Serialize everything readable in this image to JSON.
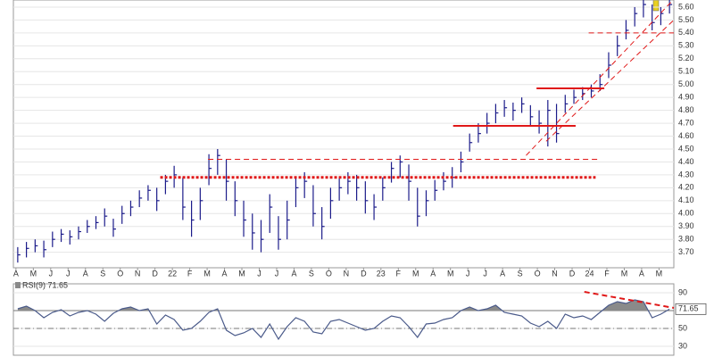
{
  "chart_data": [
    {
      "type": "ohlc",
      "categories": [
        "A",
        null,
        "M",
        null,
        "J",
        null,
        "J",
        null,
        "A",
        null,
        "S",
        null,
        "O",
        null,
        "N",
        null,
        "D",
        null,
        "22",
        null,
        "F",
        null,
        "M",
        null,
        "A",
        null,
        "M",
        null,
        "J",
        null,
        "J",
        null,
        "A",
        null,
        "S",
        null,
        "O",
        null,
        "N",
        null,
        "D",
        null,
        "23",
        null,
        "F",
        null,
        "M",
        null,
        "A",
        null,
        "M",
        null,
        "J",
        null,
        "J",
        null,
        "A",
        null,
        "S",
        null,
        "O",
        null,
        "N",
        null,
        "D",
        null,
        "24",
        null,
        "F",
        null,
        "M",
        null,
        "A",
        null,
        "M",
        null
      ],
      "high": [
        3.74,
        3.78,
        3.8,
        3.79,
        3.86,
        3.88,
        3.87,
        3.9,
        3.95,
        3.98,
        4.04,
        3.96,
        4.06,
        4.1,
        4.18,
        4.22,
        4.2,
        4.3,
        4.37,
        4.28,
        4.1,
        4.2,
        4.46,
        4.5,
        4.42,
        4.25,
        4.1,
        4.0,
        3.95,
        4.15,
        3.98,
        4.1,
        4.28,
        4.32,
        4.22,
        4.05,
        4.2,
        4.28,
        4.32,
        4.3,
        4.25,
        4.15,
        4.28,
        4.4,
        4.45,
        4.38,
        4.2,
        4.18,
        4.26,
        4.32,
        4.36,
        4.48,
        4.62,
        4.7,
        4.78,
        4.85,
        4.88,
        4.86,
        4.9,
        4.84,
        4.8,
        4.88,
        4.85,
        4.92,
        4.96,
        4.98,
        5.0,
        5.08,
        5.25,
        5.38,
        5.5,
        5.6,
        5.66,
        5.62,
        5.6,
        5.66
      ],
      "low": [
        3.62,
        3.66,
        3.7,
        3.66,
        3.74,
        3.78,
        3.76,
        3.8,
        3.85,
        3.88,
        3.9,
        3.82,
        3.92,
        3.98,
        4.05,
        4.1,
        4.02,
        4.15,
        4.2,
        3.95,
        3.82,
        3.95,
        4.22,
        4.3,
        4.1,
        3.98,
        3.82,
        3.72,
        3.7,
        3.85,
        3.72,
        3.8,
        4.05,
        4.12,
        3.9,
        3.8,
        3.96,
        4.1,
        4.15,
        4.1,
        4.0,
        3.95,
        4.1,
        4.24,
        4.28,
        4.1,
        3.9,
        3.98,
        4.1,
        4.18,
        4.2,
        4.32,
        4.48,
        4.55,
        4.62,
        4.7,
        4.75,
        4.72,
        4.78,
        4.68,
        4.62,
        4.52,
        4.55,
        4.78,
        4.85,
        4.88,
        4.9,
        4.95,
        5.05,
        5.22,
        5.35,
        5.45,
        5.52,
        5.42,
        5.46,
        5.55
      ],
      "close": [
        3.68,
        3.73,
        3.75,
        3.72,
        3.8,
        3.84,
        3.82,
        3.86,
        3.9,
        3.93,
        3.98,
        3.88,
        4.0,
        4.05,
        4.12,
        4.18,
        4.1,
        4.25,
        4.3,
        4.05,
        3.95,
        4.1,
        4.35,
        4.45,
        4.25,
        4.1,
        3.95,
        3.85,
        3.8,
        4.05,
        3.8,
        3.95,
        4.2,
        4.25,
        4.0,
        3.9,
        4.1,
        4.2,
        4.25,
        4.2,
        4.1,
        4.05,
        4.2,
        4.35,
        4.4,
        4.25,
        3.98,
        4.1,
        4.18,
        4.25,
        4.28,
        4.4,
        4.55,
        4.62,
        4.7,
        4.78,
        4.82,
        4.8,
        4.85,
        4.75,
        4.7,
        4.8,
        4.62,
        4.85,
        4.9,
        4.93,
        4.95,
        5.0,
        5.15,
        5.3,
        5.42,
        5.55,
        5.62,
        5.48,
        5.55,
        5.62
      ],
      "color": "#1c1c8a",
      "ylim": [
        3.58,
        5.655
      ],
      "yticks": [
        {
          "value": 3.7,
          "label": "3.70"
        },
        {
          "value": 3.8,
          "label": "3.80"
        },
        {
          "value": 3.9,
          "label": "3.90"
        },
        {
          "value": 4.0,
          "label": "4.00"
        },
        {
          "value": 4.1,
          "label": "4.10"
        },
        {
          "value": 4.2,
          "label": "4.20"
        },
        {
          "value": 4.3,
          "label": "4.30"
        },
        {
          "value": 4.4,
          "label": "4.40"
        },
        {
          "value": 4.5,
          "label": "4.50"
        },
        {
          "value": 4.6,
          "label": "4.60"
        },
        {
          "value": 4.7,
          "label": "4.70"
        },
        {
          "value": 4.8,
          "label": "4.80"
        },
        {
          "value": 4.9,
          "label": "4.90"
        },
        {
          "value": 5.0,
          "label": "5.00"
        },
        {
          "value": 5.1,
          "label": "5.10"
        },
        {
          "value": 5.2,
          "label": "5.20"
        },
        {
          "value": 5.3,
          "label": "5.30"
        },
        {
          "value": 5.4,
          "label": "5.40"
        },
        {
          "value": 5.5,
          "label": "5.50"
        },
        {
          "value": 5.6,
          "label": "5.60"
        }
      ],
      "grid": true,
      "lines": [
        {
          "color": "#e01818",
          "style": "dotted",
          "width": 3,
          "x": [
            16.4,
            66.5
          ],
          "y": [
            4.28,
            4.28
          ]
        },
        {
          "color": "#e01818",
          "style": "dashed",
          "width": 1,
          "x": [
            21.9,
            67.0
          ],
          "y": [
            4.42,
            4.42
          ]
        },
        {
          "color": "#e01818",
          "style": "solid",
          "width": 2,
          "x": [
            50.1,
            64.2
          ],
          "y": [
            4.68,
            4.68
          ]
        },
        {
          "color": "#e01818",
          "style": "solid",
          "width": 2,
          "x": [
            59.7,
            67.5
          ],
          "y": [
            4.97,
            4.97
          ]
        },
        {
          "color": "#e01818",
          "style": "dashed",
          "width": 1,
          "x": [
            65.7,
            75.5
          ],
          "y": [
            5.4,
            5.4
          ]
        },
        {
          "color": "#e01818",
          "style": "dashed",
          "width": 1,
          "x": [
            58.5,
            75.2
          ],
          "y": [
            4.45,
            5.64
          ]
        },
        {
          "color": "#e01818",
          "style": "dashed",
          "width": 1,
          "x": [
            60.8,
            75.5
          ],
          "y": [
            4.56,
            5.5
          ]
        }
      ]
    },
    {
      "type": "line",
      "title": "RSI(9) 71.65",
      "values": [
        72,
        75,
        70,
        62,
        68,
        71,
        64,
        68,
        70,
        66,
        58,
        67,
        72,
        74,
        70,
        72,
        55,
        65,
        60,
        48,
        50,
        58,
        68,
        72,
        48,
        42,
        45,
        50,
        40,
        55,
        38,
        52,
        62,
        58,
        46,
        44,
        58,
        60,
        56,
        52,
        48,
        50,
        58,
        64,
        62,
        52,
        40,
        55,
        56,
        60,
        62,
        70,
        74,
        70,
        72,
        76,
        68,
        66,
        64,
        56,
        52,
        58,
        50,
        66,
        62,
        64,
        60,
        68,
        76,
        80,
        78,
        82,
        80,
        62,
        66,
        71.65
      ],
      "color": "#4a5a8a",
      "fill_above": 70,
      "fill_color": "#8a8a8a",
      "ylim": [
        20,
        100
      ],
      "yticks": [
        30,
        50,
        90
      ],
      "reference_lines": [
        {
          "value": 70,
          "style": "solid"
        },
        {
          "value": 50,
          "style": "dashdot"
        }
      ],
      "lines": [
        {
          "color": "#e01818",
          "style": "dashed",
          "width": 2,
          "x": [
            65.2,
            75.5
          ],
          "y": [
            91,
            73
          ]
        }
      ]
    }
  ]
}
